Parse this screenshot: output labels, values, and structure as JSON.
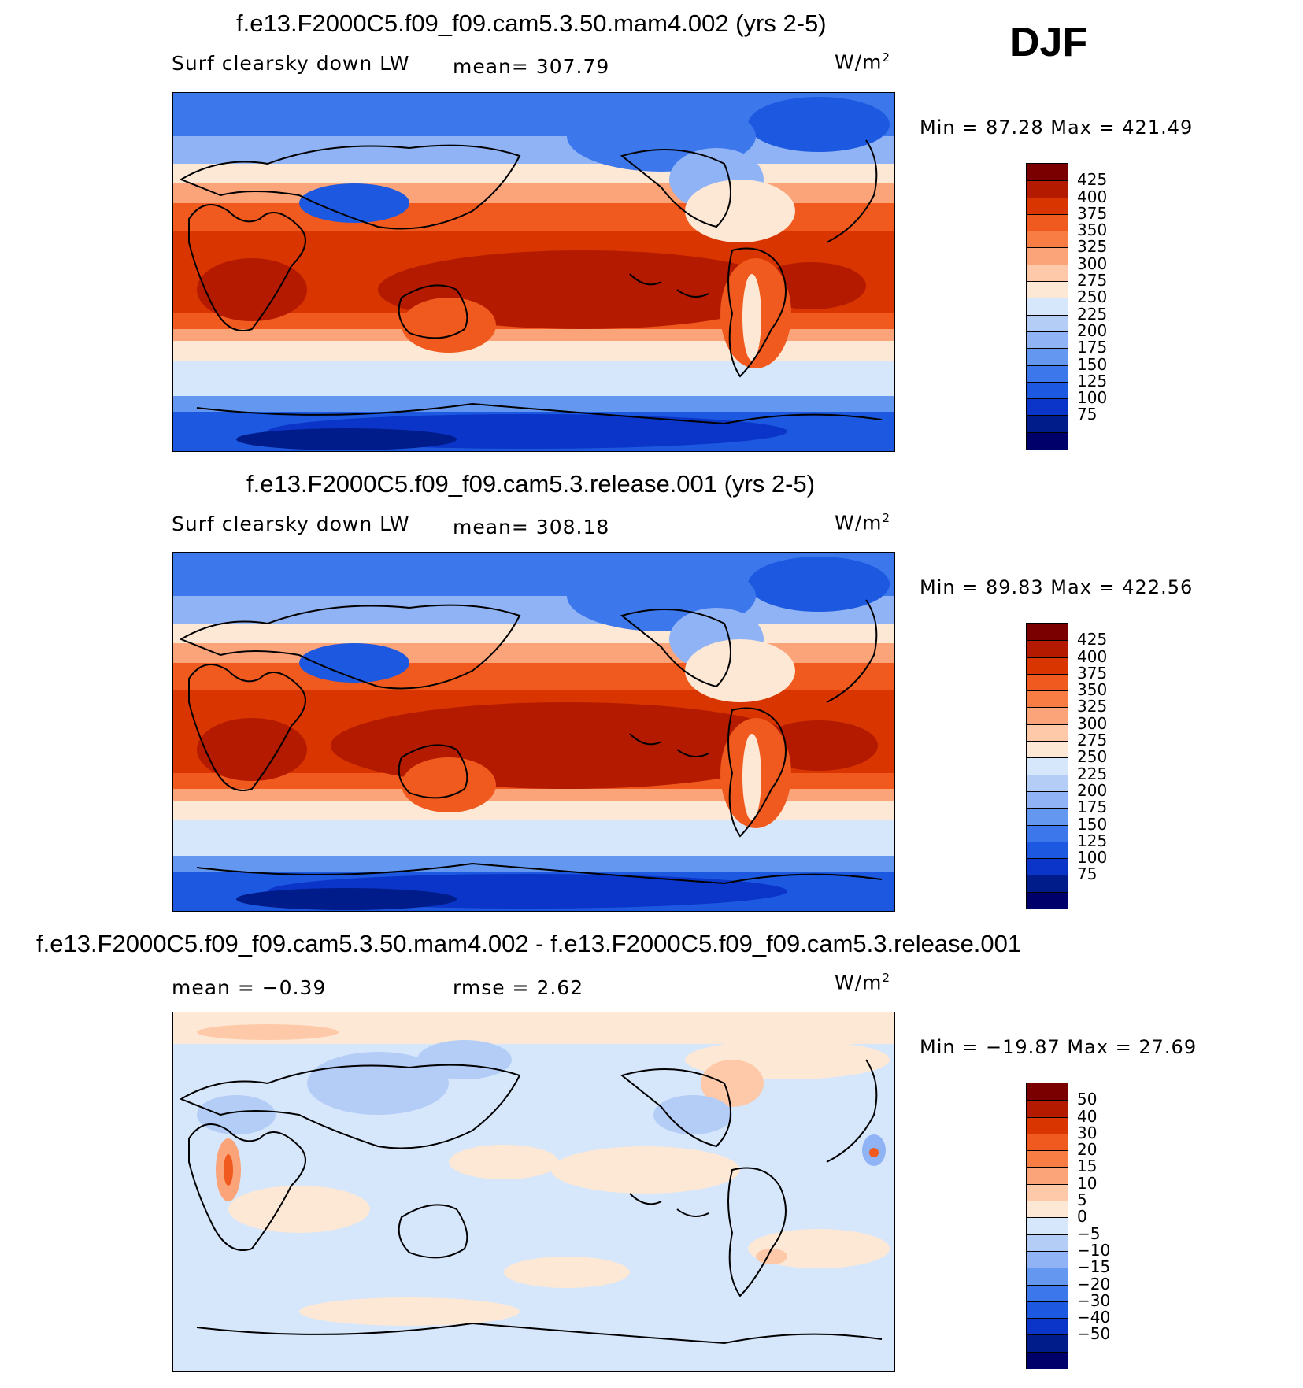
{
  "season": "DJF",
  "panels": [
    {
      "title": "f.e13.F2000C5.f09_f09.cam5.3.50.mam4.002 (yrs 2-5)",
      "variable": "Surf clearsky down LW",
      "stat_text": "mean=  307.79",
      "units_base": "W/m",
      "units_exp": "2",
      "minmax": "Min =   87.28 Max =  421.49",
      "colorbar_labels": [
        "425",
        "400",
        "375",
        "350",
        "325",
        "300",
        "275",
        "250",
        "225",
        "200",
        "175",
        "150",
        "125",
        "100",
        "75"
      ]
    },
    {
      "title": "f.e13.F2000C5.f09_f09.cam5.3.release.001 (yrs 2-5)",
      "variable": "Surf clearsky down LW",
      "stat_text": "mean=  308.18",
      "units_base": "W/m",
      "units_exp": "2",
      "minmax": "Min =   89.83 Max =  422.56",
      "colorbar_labels": [
        "425",
        "400",
        "375",
        "350",
        "325",
        "300",
        "275",
        "250",
        "225",
        "200",
        "175",
        "150",
        "125",
        "100",
        "75"
      ]
    },
    {
      "title": "f.e13.F2000C5.f09_f09.cam5.3.50.mam4.002 - f.e13.F2000C5.f09_f09.cam5.3.release.001",
      "mean_text": "mean =   −0.39",
      "rmse_text": "rmse =    2.62",
      "units_base": "W/m",
      "units_exp": "2",
      "minmax": "Min = −19.87 Max =   27.69",
      "colorbar_labels": [
        "50",
        "40",
        "30",
        "20",
        "15",
        "10",
        "5",
        "0",
        "−5",
        "−10",
        "−15",
        "−20",
        "−30",
        "−40",
        "−50"
      ]
    }
  ],
  "colors": {
    "field_scale": [
      "#7a0000",
      "#b31a00",
      "#d93500",
      "#f05a1e",
      "#f77d45",
      "#fba379",
      "#fdc9a8",
      "#fde8d5",
      "#d6e6fb",
      "#b3cdf7",
      "#8fb3f5",
      "#6497f0",
      "#3c78ec",
      "#1c58e0",
      "#0b35c8",
      "#001c8a",
      "#00006b"
    ],
    "diff_scale": [
      "#7a0000",
      "#b31a00",
      "#d93500",
      "#f05a1e",
      "#f77d45",
      "#fba379",
      "#fdc9a8",
      "#fde8d5",
      "#d6e6fb",
      "#b3cdf7",
      "#8fb3f5",
      "#6497f0",
      "#3c78ec",
      "#1c58e0",
      "#0b35c8",
      "#001c8a",
      "#00006b"
    ]
  }
}
